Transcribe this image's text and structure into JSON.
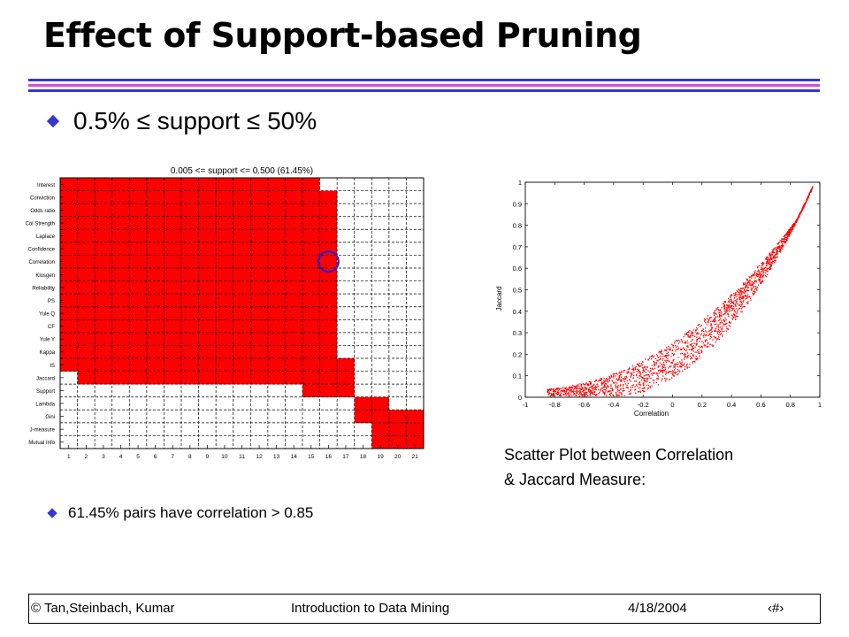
{
  "slide": {
    "title": "Effect of Support-based Pruning",
    "bullet_main": "0.5% ≤ support ≤ 50%",
    "bullet_sub": "61.45% pairs have correlation > 0.85",
    "caption_line1": "Scatter Plot between Correlation",
    "caption_line2": "& Jaccard Measure:",
    "colors": {
      "title_rule": "#3535cf",
      "accent_rule": "#d24ed2",
      "fill": "#ff0000",
      "bullet": "#3535cf"
    }
  },
  "footer": {
    "copyright": "© Tan,Steinbach, Kumar",
    "course": "Introduction to Data Mining",
    "date": "4/18/2004",
    "page_symbol": "‹#›"
  },
  "chart_data": [
    {
      "type": "heatmap",
      "title": "0.005 <= support <= 0.500 (61.45%)",
      "rows": [
        "Interest",
        "Conviction",
        "Odds ratio",
        "Col Strength",
        "Laplace",
        "Confidence",
        "Correlation",
        "Klosgen",
        "Reliability",
        "PS",
        "Yule Q",
        "CF",
        "Yule Y",
        "Kappa",
        "IS",
        "Jaccard",
        "Support",
        "Lambda",
        "Gini",
        "J-measure",
        "Mutual Info"
      ],
      "columns": [
        "1",
        "2",
        "3",
        "4",
        "5",
        "6",
        "7",
        "8",
        "9",
        "10",
        "11",
        "12",
        "13",
        "14",
        "15",
        "16",
        "17",
        "18",
        "19",
        "20",
        "21"
      ],
      "red_column_ranges": [
        [
          1,
          15
        ],
        [
          1,
          16
        ],
        [
          1,
          16
        ],
        [
          1,
          16
        ],
        [
          1,
          16
        ],
        [
          1,
          16
        ],
        [
          1,
          16
        ],
        [
          1,
          16
        ],
        [
          1,
          16
        ],
        [
          1,
          16
        ],
        [
          1,
          16
        ],
        [
          1,
          16
        ],
        [
          1,
          16
        ],
        [
          1,
          16
        ],
        [
          1,
          17
        ],
        [
          2,
          17
        ],
        [
          15,
          17
        ],
        [
          18,
          19
        ],
        [
          18,
          21
        ],
        [
          19,
          21
        ],
        [
          19,
          21
        ]
      ],
      "highlight_circle": {
        "row": "Correlation",
        "column": "16",
        "color": "#1f1fd6"
      }
    },
    {
      "type": "scatter",
      "xlabel": "Correlation",
      "ylabel": "Jaccard",
      "xlim": [
        -1,
        1
      ],
      "ylim": [
        0,
        1
      ],
      "xticks": [
        "-1",
        "-0.8",
        "-0.6",
        "-0.4",
        "-0.2",
        "0",
        "0.2",
        "0.4",
        "0.6",
        "0.8",
        "1"
      ],
      "yticks": [
        "0",
        "0.1",
        "0.2",
        "0.3",
        "0.4",
        "0.5",
        "0.6",
        "0.7",
        "0.8",
        "0.9",
        "1"
      ],
      "marker_color": "#ff0000",
      "relation": "lower bound on Jaccard rises with correlation; cloud spans x -0.85 to 0.95, upper envelope from about 0.03 at x=-0.85 to about 0.95 at x=0.95"
    }
  ]
}
